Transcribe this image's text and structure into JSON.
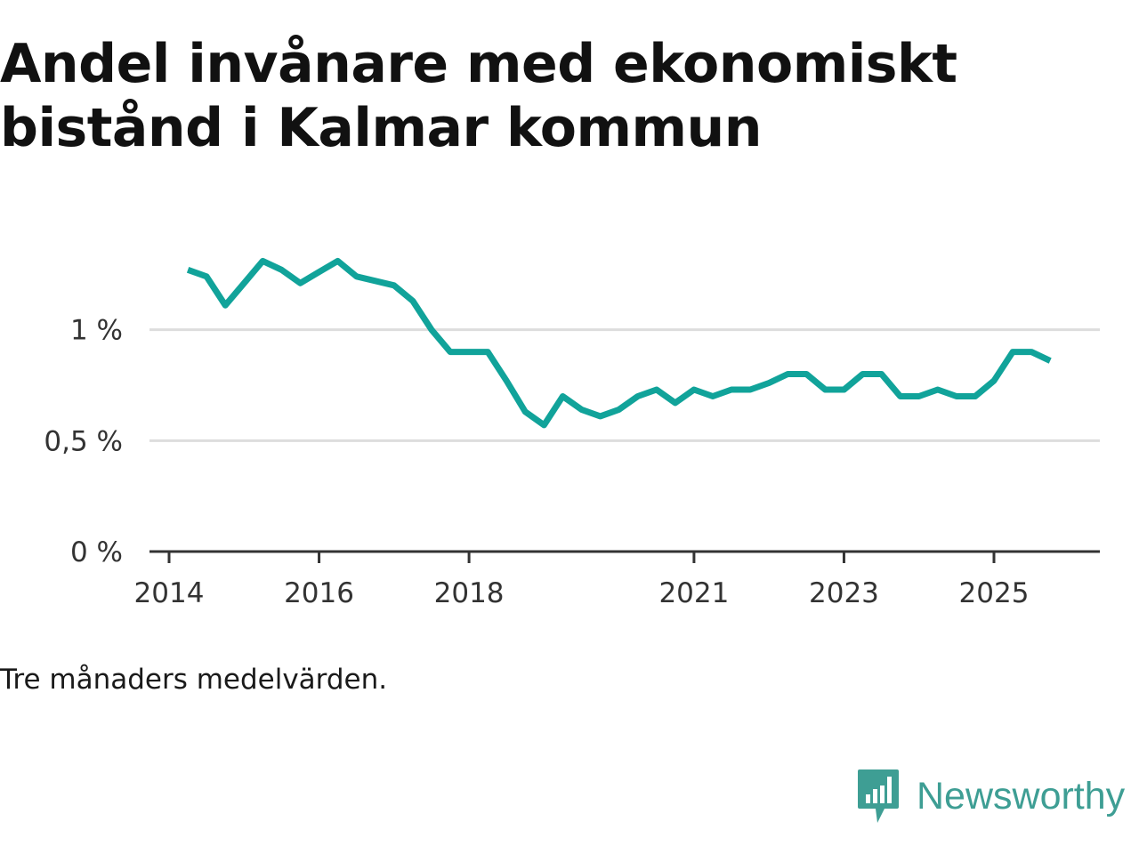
{
  "title": "Andel invånare med ekonomiskt bistånd i Kalmar kommun",
  "caption": "Tre månaders medelvärden.",
  "brand": {
    "name": "Newsworthy",
    "icon": "newsworthy-logo-icon"
  },
  "colors": {
    "line": "#11a39a",
    "grid": "#dddddd",
    "axis": "#333333",
    "brand": "#3e9e94",
    "title": "#111111"
  },
  "chart_data": {
    "type": "line",
    "title": "Andel invånare med ekonomiskt bistånd i Kalmar kommun",
    "xlabel": "",
    "ylabel": "",
    "unit": "%",
    "ylim": [
      0,
      1.5
    ],
    "xlim": [
      2013.9,
      2026.6
    ],
    "grid": true,
    "yticks": [
      {
        "value": 0,
        "label": "0 %"
      },
      {
        "value": 0.5,
        "label": "0,5 %"
      },
      {
        "value": 1,
        "label": "1 %"
      }
    ],
    "xticks": [
      {
        "value": 2014,
        "label": "2014"
      },
      {
        "value": 2016,
        "label": "2016"
      },
      {
        "value": 2018,
        "label": "2018"
      },
      {
        "value": 2021,
        "label": "2021"
      },
      {
        "value": 2023,
        "label": "2023"
      },
      {
        "value": 2025,
        "label": "2025"
      }
    ],
    "series": [
      {
        "name": "Andel invånare med ekonomiskt bistånd",
        "x": [
          2014.25,
          2014.5,
          2014.75,
          2015.0,
          2015.25,
          2015.5,
          2015.75,
          2016.0,
          2016.25,
          2016.5,
          2016.75,
          2017.0,
          2017.25,
          2017.5,
          2017.75,
          2018.0,
          2018.25,
          2018.5,
          2018.75,
          2019.0,
          2019.25,
          2019.5,
          2019.75,
          2020.0,
          2020.25,
          2020.5,
          2020.75,
          2021.0,
          2021.25,
          2021.5,
          2021.75,
          2022.0,
          2022.25,
          2022.5,
          2022.75,
          2023.0,
          2023.25,
          2023.5,
          2023.75,
          2024.0,
          2024.25,
          2024.5,
          2024.75,
          2025.0,
          2025.25,
          2025.5,
          2025.75
        ],
        "values": [
          1.27,
          1.24,
          1.11,
          1.21,
          1.31,
          1.27,
          1.21,
          1.26,
          1.31,
          1.24,
          1.22,
          1.2,
          1.13,
          1.0,
          0.9,
          0.9,
          0.9,
          0.77,
          0.63,
          0.57,
          0.7,
          0.64,
          0.61,
          0.64,
          0.7,
          0.73,
          0.67,
          0.73,
          0.7,
          0.73,
          0.73,
          0.76,
          0.8,
          0.8,
          0.73,
          0.73,
          0.8,
          0.8,
          0.7,
          0.7,
          0.73,
          0.7,
          0.7,
          0.77,
          0.9,
          0.9,
          0.86
        ]
      }
    ]
  }
}
